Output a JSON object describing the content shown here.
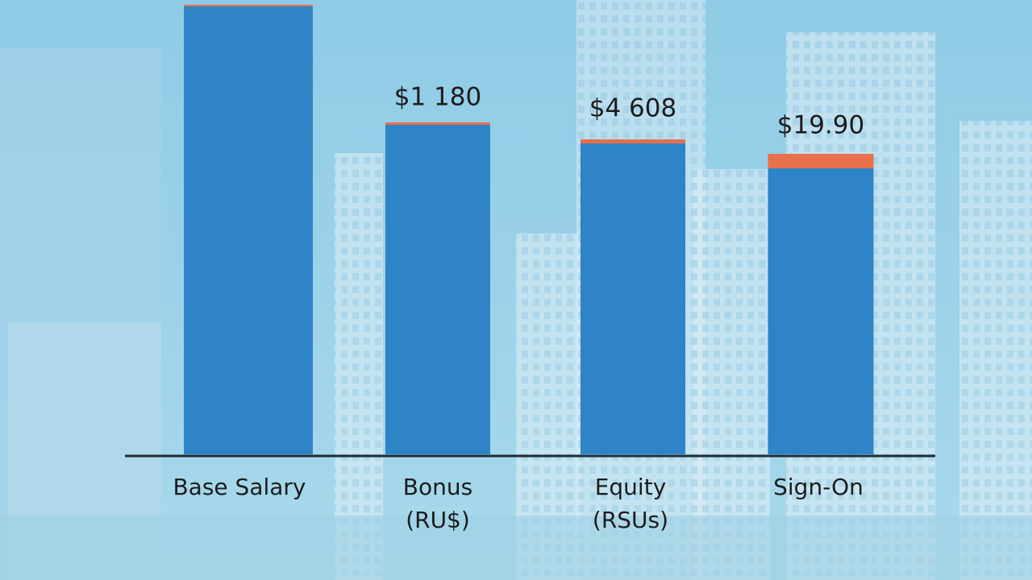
{
  "chart_data": {
    "type": "bar",
    "categories": [
      [
        "Base Salary"
      ],
      [
        "Bonus",
        "(RU$)"
      ],
      [
        "Equity",
        "(RSUs)"
      ],
      [
        "Sign-On"
      ]
    ],
    "series": [
      {
        "color": "#2e84c6",
        "values": [
          556,
          409,
          386,
          355
        ]
      },
      {
        "color": "#e8704a",
        "values": [
          2,
          3,
          5,
          18
        ]
      }
    ],
    "stacked": true,
    "annotations": [
      null,
      "$1 180",
      "$4 608",
      "$19.90"
    ],
    "ylim": [
      0,
      560
    ]
  }
}
